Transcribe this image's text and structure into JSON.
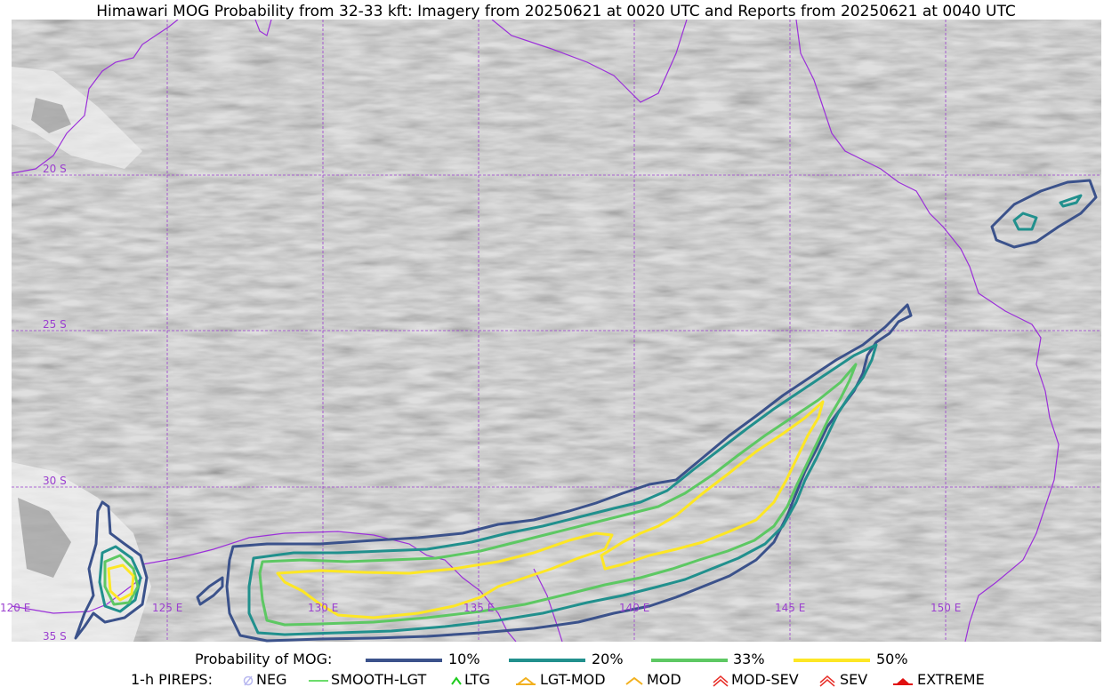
{
  "title": "Himawari MOG Probability from 32-33 kft: Imagery from 20250621 at 0020 UTC and Reports from 20250621 at 0040 UTC",
  "map": {
    "graticule_color": "#9b3fcf",
    "coastline_color": "#9b30d9",
    "lat_labels": [
      "20 S",
      "25 S",
      "30 S",
      "35 S"
    ],
    "lon_labels": [
      "120 E",
      "125 E",
      "130 E",
      "135 E",
      "140 E",
      "145 E",
      "150 E"
    ]
  },
  "probability_legend": {
    "title": "Probability of MOG:",
    "items": [
      {
        "label": "10%",
        "color": "#3b528b"
      },
      {
        "label": "20%",
        "color": "#21908d"
      },
      {
        "label": "33%",
        "color": "#5dc863"
      },
      {
        "label": "50%",
        "color": "#fde725"
      }
    ]
  },
  "pirep_legend": {
    "title": "1-h PIREPS:",
    "items": [
      {
        "label": "NEG",
        "icon": "neg-icon",
        "color": "#b8b8f0"
      },
      {
        "label": "SMOOTH-LGT",
        "icon": "smooth-lgt-line-icon",
        "color": "#3cd23c"
      },
      {
        "label": "LTG",
        "icon": "ltg-chevron-icon",
        "color": "#1ecc1e"
      },
      {
        "label": "LGT-MOD",
        "icon": "lgt-mod-icon",
        "color": "#f2b01e"
      },
      {
        "label": "MOD",
        "icon": "mod-chevron-icon",
        "color": "#f2b01e"
      },
      {
        "label": "MOD-SEV",
        "icon": "mod-sev-icon",
        "color": "#e8302a"
      },
      {
        "label": "SEV",
        "icon": "sev-icon",
        "color": "#e8302a"
      },
      {
        "label": "EXTREME",
        "icon": "extreme-icon",
        "color": "#e01010"
      }
    ]
  }
}
